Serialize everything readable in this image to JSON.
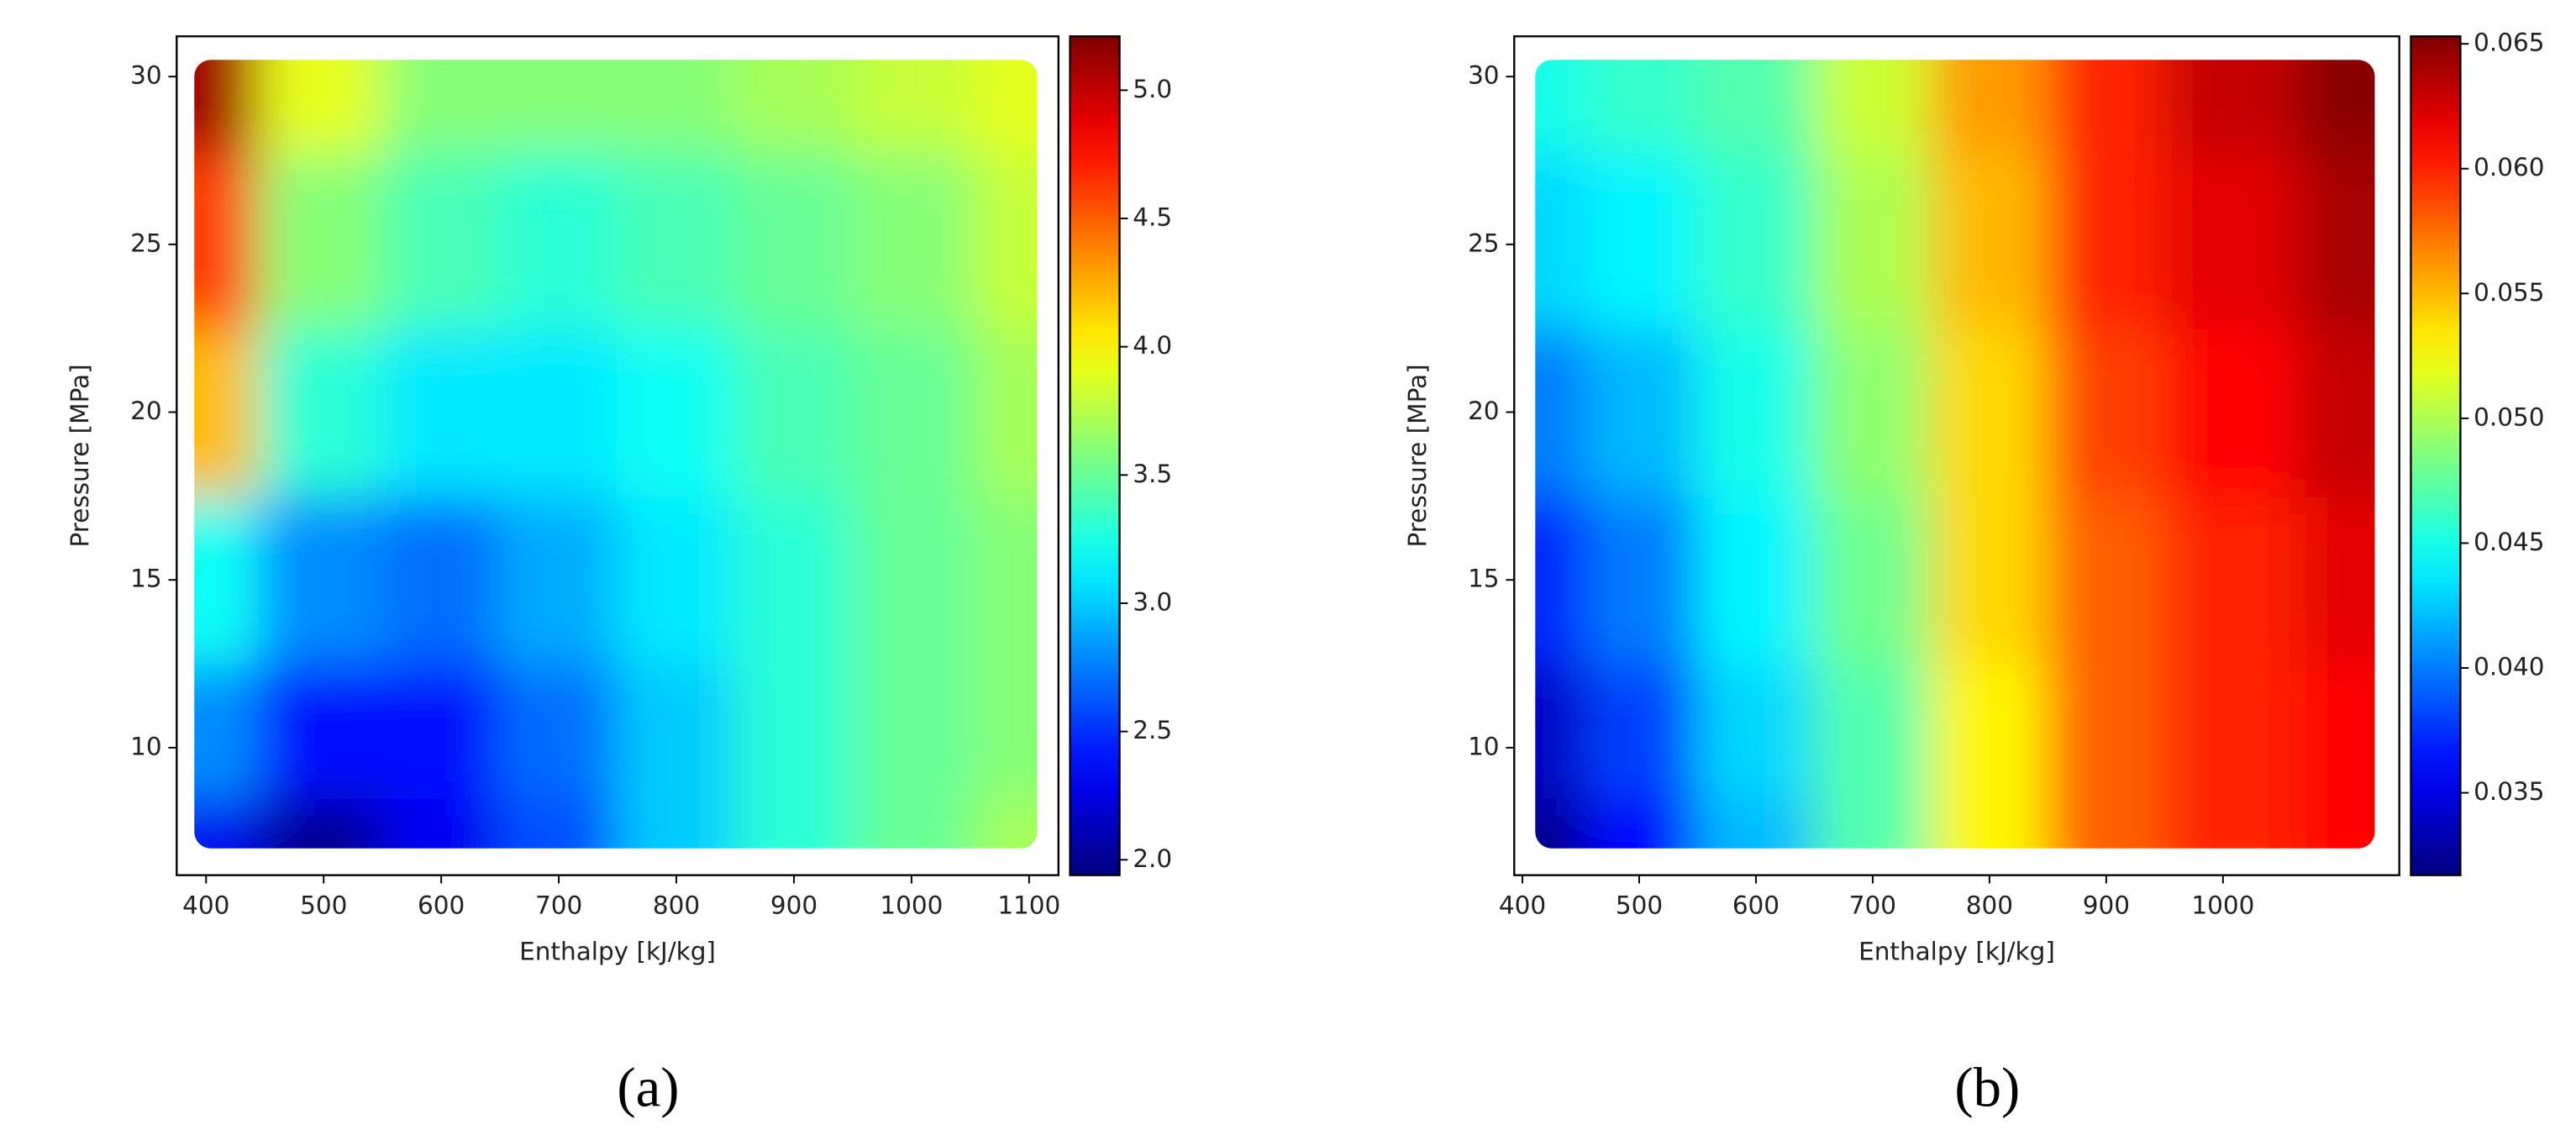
{
  "chart_data": [
    {
      "type": "heatmap",
      "label": "(a)",
      "xlabel": "Enthalpy [kJ/kg]",
      "ylabel": "Pressure [MPa]",
      "colormap": "jet",
      "xlim": [
        375,
        1125
      ],
      "ylim": [
        6.2,
        31.2
      ],
      "xticks": [
        400,
        500,
        600,
        700,
        800,
        900,
        1000,
        1100
      ],
      "yticks": [
        10,
        15,
        20,
        25,
        30
      ],
      "x": [
        390,
        500,
        600,
        700,
        800,
        900,
        1000,
        1107
      ],
      "y": [
        7,
        10,
        15,
        20,
        25,
        30.5
      ],
      "z": [
        [
          2.3,
          2.0,
          2.3,
          2.6,
          3.0,
          3.3,
          3.5,
          3.7
        ],
        [
          2.8,
          2.4,
          2.4,
          2.7,
          3.0,
          3.3,
          3.5,
          3.6
        ],
        [
          3.2,
          2.8,
          2.7,
          2.9,
          3.1,
          3.3,
          3.5,
          3.6
        ],
        [
          4.2,
          3.3,
          3.1,
          3.1,
          3.2,
          3.4,
          3.5,
          3.7
        ],
        [
          4.6,
          3.6,
          3.4,
          3.3,
          3.4,
          3.5,
          3.6,
          3.8
        ],
        [
          5.1,
          3.9,
          3.6,
          3.6,
          3.6,
          3.7,
          3.8,
          3.9
        ]
      ],
      "colorbar": {
        "lim": [
          1.94,
          5.21
        ],
        "ticks": [
          {
            "value": 2,
            "label": "2.0"
          },
          2.5,
          {
            "value": 3,
            "label": "3.0"
          },
          3.5,
          {
            "value": 4,
            "label": "4.0"
          },
          4.5,
          {
            "value": 5,
            "label": "5.0"
          }
        ]
      }
    },
    {
      "type": "heatmap",
      "label": "(b)",
      "xlabel": "Enthalpy [kJ/kg]",
      "ylabel": "Pressure [MPa]",
      "colormap": "jet",
      "xlim": [
        393,
        1151
      ],
      "ylim": [
        6.2,
        31.2
      ],
      "xticks": [
        400,
        500,
        600,
        700,
        800,
        900,
        1000
      ],
      "yticks": [
        10,
        15,
        20,
        25,
        30
      ],
      "x": [
        411,
        500,
        600,
        700,
        800,
        900,
        1000,
        1130
      ],
      "y": [
        7,
        10,
        15,
        20,
        25,
        30.5
      ],
      "z": [
        [
          0.032,
          0.036,
          0.042,
          0.047,
          0.053,
          0.058,
          0.06,
          0.061
        ],
        [
          0.034,
          0.038,
          0.043,
          0.047,
          0.053,
          0.058,
          0.06,
          0.061
        ],
        [
          0.037,
          0.04,
          0.044,
          0.048,
          0.054,
          0.058,
          0.06,
          0.062
        ],
        [
          0.04,
          0.042,
          0.045,
          0.049,
          0.054,
          0.059,
          0.061,
          0.063
        ],
        [
          0.043,
          0.044,
          0.046,
          0.05,
          0.055,
          0.06,
          0.062,
          0.064
        ],
        [
          0.045,
          0.046,
          0.047,
          0.051,
          0.056,
          0.06,
          0.063,
          0.065
        ]
      ],
      "colorbar": {
        "lim": [
          0.0317,
          0.0653
        ],
        "ticks": [
          0.035,
          {
            "value": 0.04,
            "label": "0.040"
          },
          0.045,
          {
            "value": 0.05,
            "label": "0.050"
          },
          0.055,
          {
            "value": 0.06,
            "label": "0.060"
          },
          0.065
        ]
      }
    }
  ]
}
